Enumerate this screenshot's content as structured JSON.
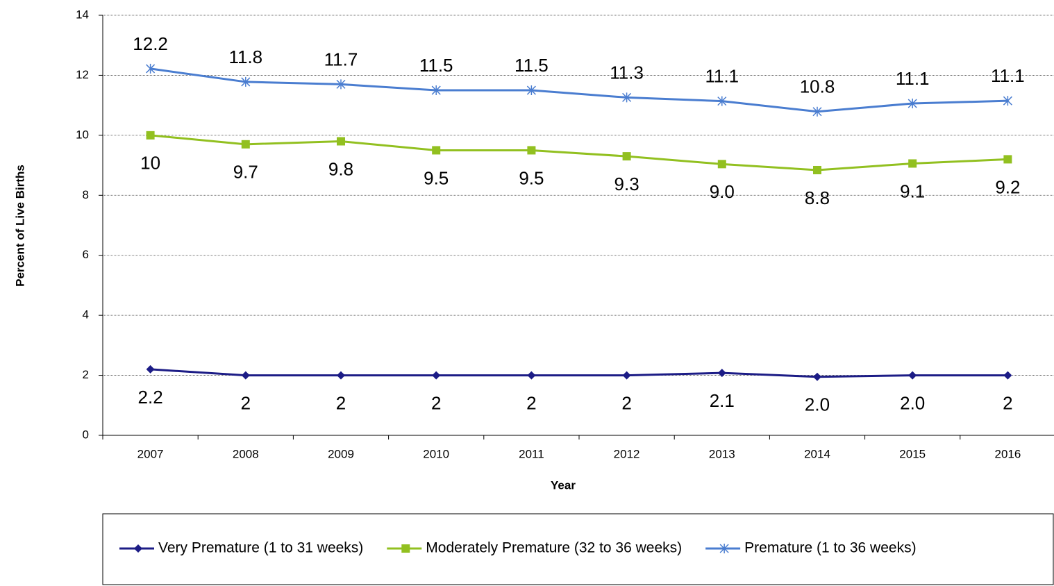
{
  "chart_data": {
    "type": "line",
    "x_label": "Year",
    "y_label": "Percent of Live Births",
    "categories": [
      "2007",
      "2008",
      "2009",
      "2010",
      "2011",
      "2012",
      "2013",
      "2014",
      "2015",
      "2016"
    ],
    "series": [
      {
        "name": "Very Premature (1 to 31 weeks)",
        "color": "#1c1c86",
        "marker": "diamond",
        "label_position": "below",
        "values": [
          2.2,
          2,
          2,
          2,
          2,
          2,
          2.08,
          1.95,
          2.0,
          2
        ],
        "value_labels": [
          "2.2",
          "2",
          "2",
          "2",
          "2",
          "2",
          "2.1",
          "2.0",
          "2.0",
          "2"
        ]
      },
      {
        "name": "Moderately Premature (32 to 36 weeks)",
        "color": "#92c020",
        "marker": "square",
        "label_position": "below",
        "values": [
          10,
          9.7,
          9.8,
          9.5,
          9.5,
          9.3,
          9.04,
          8.84,
          9.06,
          9.2
        ],
        "value_labels": [
          "10",
          "9.7",
          "9.8",
          "9.5",
          "9.5",
          "9.3",
          "9.0",
          "8.8",
          "9.1",
          "9.2"
        ]
      },
      {
        "name": "Premature (1 to 36 weeks)",
        "color": "#4a7dd0",
        "marker": "star",
        "label_position": "above",
        "values": [
          12.22,
          11.78,
          11.7,
          11.5,
          11.5,
          11.26,
          11.14,
          10.79,
          11.06,
          11.15
        ],
        "value_labels": [
          "12.2",
          "11.8",
          "11.7",
          "11.5",
          "11.5",
          "11.3",
          "11.1",
          "10.8",
          "11.1",
          "11.1"
        ]
      }
    ],
    "ylim": [
      0,
      14
    ],
    "yticks": [
      0,
      2,
      4,
      6,
      8,
      10,
      12,
      14
    ],
    "grid": true
  }
}
